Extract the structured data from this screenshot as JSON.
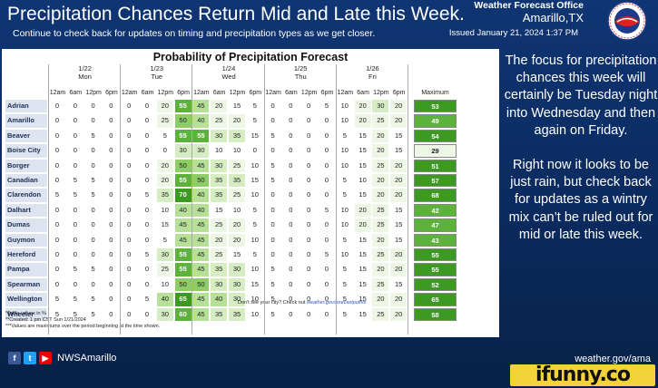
{
  "header": {
    "title": "Precipitation Chances Return Mid and Late this Week.",
    "subtitle": "Continue to check back for updates on timing and precipitation types as we get closer.",
    "office": "Weather Forecast Office",
    "city": "Amarillo,TX",
    "issued": "Issued January 21, 2024 1:37 PM"
  },
  "logo": {
    "icon": "nws-logo",
    "text": "NATIONAL WEATHER SERVICE"
  },
  "table": {
    "title": "Probability of Precipitation Forecast",
    "days": [
      {
        "date": "1/22",
        "name": "Mon"
      },
      {
        "date": "1/23",
        "name": "Tue"
      },
      {
        "date": "1/24",
        "name": "Wed"
      },
      {
        "date": "1/25",
        "name": "Thu"
      },
      {
        "date": "1/26",
        "name": "Fri"
      }
    ],
    "hours": [
      "12am",
      "6am",
      "12pm",
      "6pm"
    ],
    "max_header": "Maximum",
    "rows": [
      {
        "loc": "Adrian",
        "v": [
          0,
          0,
          0,
          0,
          0,
          0,
          20,
          55,
          45,
          20,
          15,
          5,
          0,
          0,
          0,
          5,
          10,
          20,
          30,
          20
        ],
        "max": 53
      },
      {
        "loc": "Amarillo",
        "v": [
          0,
          0,
          0,
          0,
          0,
          0,
          25,
          50,
          40,
          25,
          20,
          5,
          0,
          0,
          0,
          0,
          10,
          20,
          25,
          20
        ],
        "max": 49
      },
      {
        "loc": "Beaver",
        "v": [
          0,
          0,
          5,
          0,
          0,
          0,
          5,
          55,
          55,
          30,
          35,
          15,
          5,
          0,
          0,
          0,
          5,
          15,
          20,
          15
        ],
        "max": 54
      },
      {
        "loc": "Boise City",
        "v": [
          0,
          0,
          0,
          0,
          0,
          0,
          0,
          30,
          30,
          10,
          10,
          0,
          0,
          0,
          0,
          0,
          10,
          15,
          20,
          15
        ],
        "max": 29
      },
      {
        "loc": "Borger",
        "v": [
          0,
          0,
          0,
          0,
          0,
          0,
          20,
          50,
          45,
          30,
          25,
          10,
          5,
          0,
          0,
          0,
          10,
          15,
          25,
          20
        ],
        "max": 51
      },
      {
        "loc": "Canadian",
        "v": [
          0,
          5,
          5,
          0,
          0,
          0,
          20,
          55,
          50,
          35,
          35,
          15,
          5,
          0,
          0,
          0,
          5,
          10,
          20,
          20
        ],
        "max": 57
      },
      {
        "loc": "Clarendon",
        "v": [
          5,
          5,
          5,
          0,
          0,
          5,
          35,
          70,
          40,
          35,
          25,
          10,
          0,
          0,
          0,
          0,
          5,
          15,
          20,
          20
        ],
        "max": 68
      },
      {
        "loc": "Dalhart",
        "v": [
          0,
          0,
          0,
          0,
          0,
          0,
          10,
          40,
          40,
          15,
          10,
          5,
          0,
          0,
          0,
          5,
          10,
          20,
          25,
          15
        ],
        "max": 42
      },
      {
        "loc": "Dumas",
        "v": [
          0,
          0,
          0,
          0,
          0,
          0,
          15,
          45,
          45,
          25,
          20,
          5,
          0,
          0,
          0,
          0,
          10,
          20,
          25,
          15
        ],
        "max": 47
      },
      {
        "loc": "Guymon",
        "v": [
          0,
          0,
          0,
          0,
          0,
          0,
          5,
          45,
          45,
          20,
          20,
          10,
          0,
          0,
          0,
          0,
          5,
          15,
          20,
          15
        ],
        "max": 43
      },
      {
        "loc": "Hereford",
        "v": [
          0,
          0,
          0,
          0,
          0,
          5,
          30,
          55,
          45,
          25,
          15,
          5,
          0,
          0,
          0,
          5,
          10,
          15,
          25,
          20
        ],
        "max": 55
      },
      {
        "loc": "Pampa",
        "v": [
          0,
          5,
          5,
          0,
          0,
          0,
          25,
          55,
          45,
          35,
          30,
          10,
          5,
          0,
          0,
          0,
          5,
          15,
          20,
          20
        ],
        "max": 55
      },
      {
        "loc": "Spearman",
        "v": [
          0,
          0,
          0,
          0,
          0,
          0,
          10,
          50,
          50,
          30,
          30,
          15,
          5,
          0,
          0,
          0,
          5,
          15,
          25,
          15
        ],
        "max": 52
      },
      {
        "loc": "Wellington",
        "v": [
          5,
          5,
          5,
          0,
          0,
          5,
          40,
          65,
          45,
          40,
          30,
          10,
          5,
          0,
          0,
          0,
          5,
          15,
          20,
          20
        ],
        "max": 65
      },
      {
        "loc": "Wheeler",
        "v": [
          5,
          5,
          5,
          0,
          0,
          0,
          30,
          60,
          45,
          35,
          35,
          10,
          5,
          0,
          0,
          0,
          5,
          15,
          25,
          20
        ],
        "max": 58
      }
    ],
    "notes": [
      "*Table values in %",
      "**Created: 1 pm CST Sun 1/21/2024",
      "***Values are maximums over the period beginning at the time shown."
    ],
    "see_city": "Don't see your city? Check out",
    "see_city_link": "weather.gov/forecastpoints"
  },
  "narrative": [
    "The focus for precipitation chances this week will certainly be Tuesday night into Wednesday and then again on Friday.",
    "Right now it looks to be just rain, but check back for updates as a wintry mix can’t be ruled out for mid or late this week."
  ],
  "footer": {
    "handle": "NWSAmarillo",
    "website": "weather.gov/ama",
    "social": [
      "f",
      "t",
      "▶"
    ]
  },
  "watermark": "ifunny.co",
  "colors": {
    "background": "#0f3573",
    "green_scale": [
      "#ffffff",
      "#eef7e6",
      "#d6edc4",
      "#b6df98",
      "#8dcc66",
      "#5cb23a",
      "#3c9a22"
    ]
  }
}
